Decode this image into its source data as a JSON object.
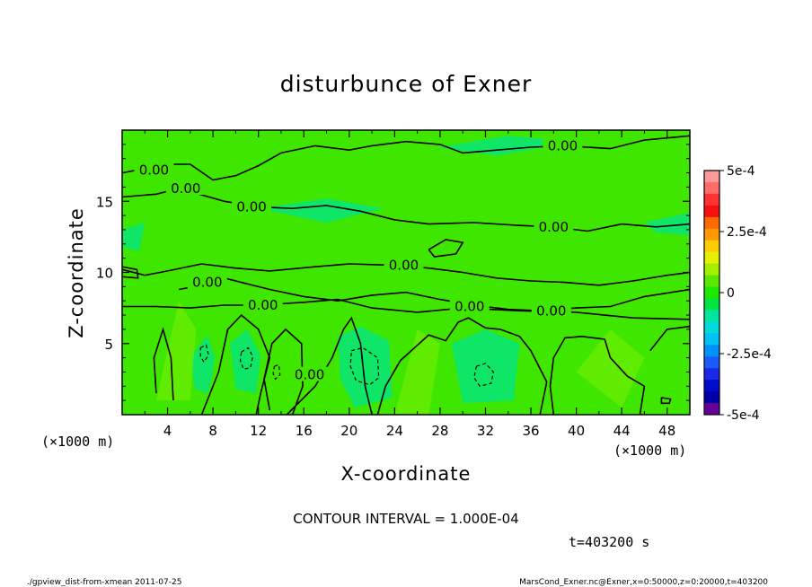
{
  "chart_data": {
    "type": "contour",
    "title": "disturbunce of Exner",
    "xlabel": "X-coordinate",
    "ylabel": "Z-coordinate",
    "x_unit_label": "(×1000 m)",
    "x_unit_label_right": "(×1000 m)",
    "xlim": [
      0,
      50
    ],
    "ylim": [
      0,
      20
    ],
    "x_ticks": [
      4,
      8,
      12,
      16,
      20,
      24,
      28,
      32,
      36,
      40,
      44,
      48
    ],
    "y_ticks": [
      5,
      10,
      15
    ],
    "contour_interval_text": "CONTOUR INTERVAL = 1.000E-04",
    "time_text": "t=403200 s",
    "contour_labels": [
      {
        "text": "0.00",
        "x": 2.8,
        "y": 17.2
      },
      {
        "text": "0.00",
        "x": 5.6,
        "y": 15.9
      },
      {
        "text": "0.00",
        "x": 11.4,
        "y": 14.6
      },
      {
        "text": "0.00",
        "x": 38.8,
        "y": 18.9
      },
      {
        "text": "0.00",
        "x": 38.0,
        "y": 13.2
      },
      {
        "text": "0.00",
        "x": 24.8,
        "y": 10.5
      },
      {
        "text": "0.00",
        "x": 7.5,
        "y": 9.3
      },
      {
        "text": "0.00",
        "x": 12.4,
        "y": 7.7
      },
      {
        "text": "0.00",
        "x": 30.6,
        "y": 7.6
      },
      {
        "text": "0.00",
        "x": 37.8,
        "y": 7.3
      },
      {
        "text": "0.00",
        "x": 16.5,
        "y": 2.8
      }
    ],
    "colorbar": {
      "range": [
        -0.0005,
        0.0005
      ],
      "labels": [
        "5e-4",
        "2.5e-4",
        "0",
        "-2.5e-4",
        "-5e-4"
      ],
      "colors": [
        "#fe9999",
        "#fe6c6c",
        "#fd3333",
        "#f60f0f",
        "#fe6a00",
        "#fe9a00",
        "#fccc00",
        "#e6f000",
        "#a4ee00",
        "#5ae800",
        "#1ee800",
        "#00e640",
        "#00e5a0",
        "#00dada",
        "#00c2f4",
        "#0092f6",
        "#1a5afa",
        "#1a28e8",
        "#000ccc",
        "#0000a8",
        "#660099"
      ]
    }
  },
  "footer": {
    "left": "./gpview_dist-from-xmean  2011-07-25",
    "right": "MarsCond_Exner.nc@Exner,x=0:50000,z=0:20000,t=403200"
  }
}
